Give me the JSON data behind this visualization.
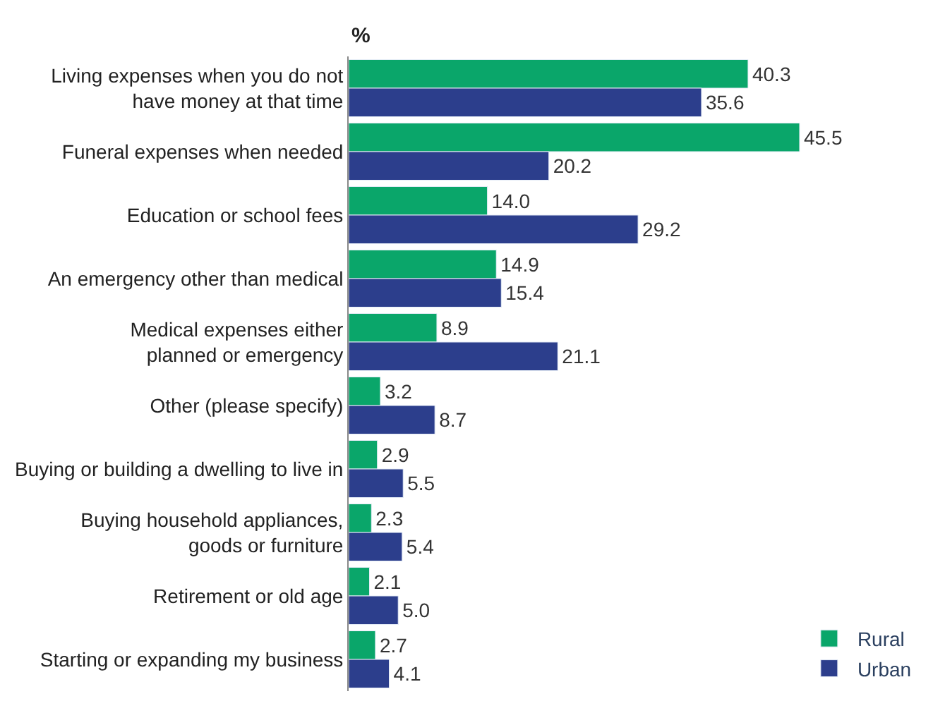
{
  "chart_data": {
    "type": "bar",
    "orientation": "horizontal",
    "xlabel": "%",
    "categories": [
      "Living expenses when you do not\nhave money at that time",
      "Funeral expenses when needed",
      "Education or school fees",
      "An emergency other than medical",
      "Medical expenses either\nplanned or emergency",
      "Other (please specify)",
      "Buying or building a dwelling to live in",
      "Buying household appliances,\ngoods or furniture",
      "Retirement or old age",
      "Starting or expanding my business"
    ],
    "series": [
      {
        "name": "Rural",
        "color": "#0aa66a",
        "values": [
          40.3,
          45.5,
          14.0,
          14.9,
          8.9,
          3.2,
          2.9,
          2.3,
          2.1,
          2.7
        ],
        "value_labels": [
          "40.3",
          "45.5",
          "14.0",
          "14.9",
          "8.9",
          "3.2",
          "2.9",
          "2.3",
          "2.1",
          "2.7"
        ]
      },
      {
        "name": "Urban",
        "color": "#2c3e8c",
        "values": [
          35.6,
          20.2,
          29.2,
          15.4,
          21.1,
          8.7,
          5.5,
          5.4,
          5.0,
          4.1
        ],
        "value_labels": [
          "35.6",
          "20.2",
          "29.2",
          "15.4",
          "21.1",
          "8.7",
          "5.5",
          "5.4",
          "5.0",
          "4.1"
        ]
      }
    ],
    "legend": "bottom right",
    "tick_labels": "y"
  }
}
